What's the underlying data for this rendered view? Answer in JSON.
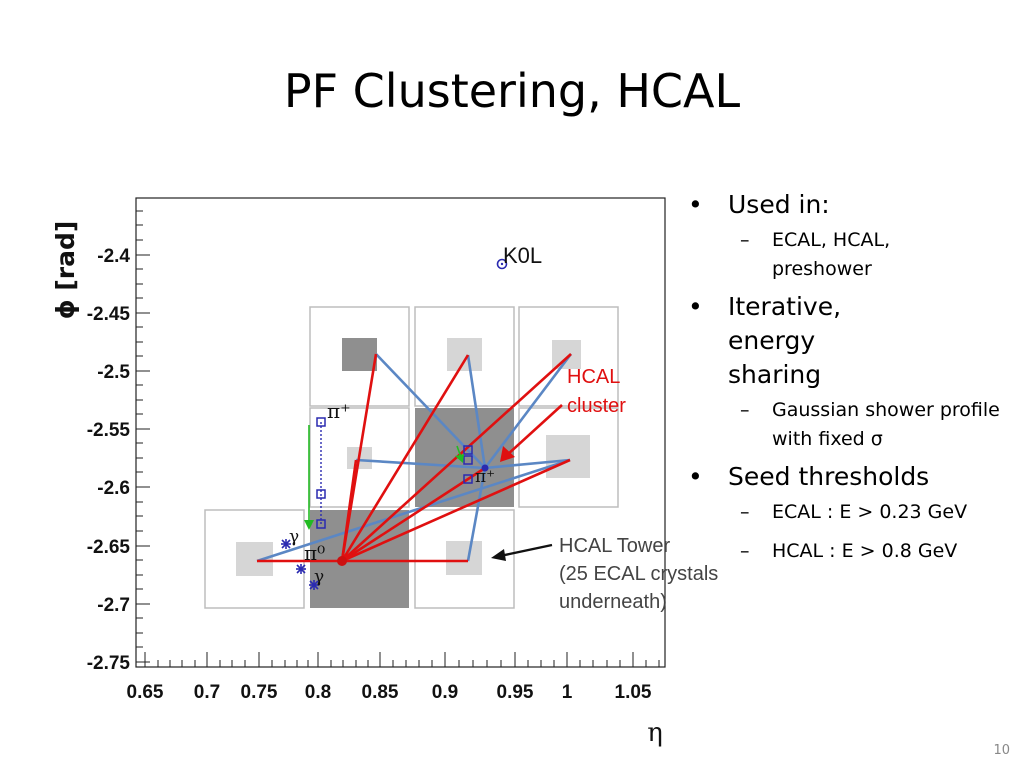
{
  "slide": {
    "title": "PF Clustering, HCAL",
    "page_number": "10"
  },
  "plot": {
    "y_axis_label": "ϕ [rad]",
    "x_axis_label": "η",
    "x_ticks": [
      "0.65",
      "0.7",
      "0.75",
      "0.8",
      "0.85",
      "0.9",
      "0.95",
      "1",
      "1.05"
    ],
    "y_ticks": [
      "-2.4",
      "-2.45",
      "-2.5",
      "-2.55",
      "-2.6",
      "-2.65",
      "-2.7",
      "-2.75"
    ],
    "annotations": {
      "k0l": "K0L",
      "pi_plus": "π⁺",
      "pi_zero": "π⁰",
      "gamma": "γ",
      "hcal_cluster_line1": "HCAL",
      "hcal_cluster_line2": "cluster",
      "hcal_tower_line1": "HCAL Tower",
      "hcal_tower_line2": "(25 ECAL crystals",
      "hcal_tower_line3": "underneath)"
    },
    "colors": {
      "cluster_link": "#e01010",
      "hcal_link": "#5b87c4",
      "track": "#2a2ab0",
      "green_arrow": "#22bb22",
      "tower_dark": "#8f8f8f",
      "tower_light": "#d6d6d6"
    }
  },
  "bullets": [
    {
      "text": "Used in:",
      "sub": [
        "ECAL, HCAL, preshower"
      ]
    },
    {
      "text": "Iterative, energy sharing",
      "sub": [
        "Gaussian shower profile with fixed σ"
      ]
    },
    {
      "text": "Seed thresholds",
      "sub": [
        "ECAL : E > 0.23 GeV",
        "HCAL : E > 0.8 GeV"
      ]
    }
  ]
}
